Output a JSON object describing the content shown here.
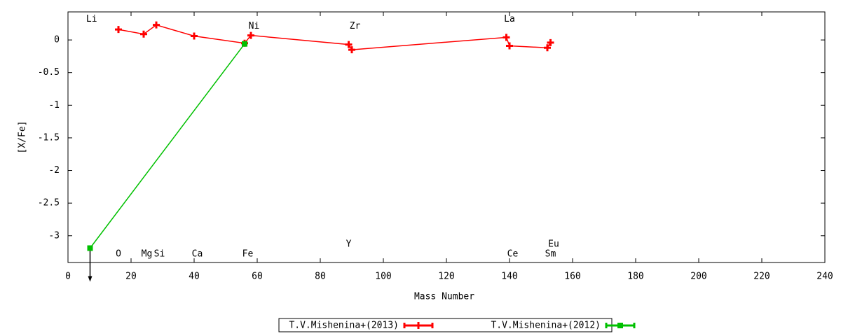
{
  "chart_data": {
    "type": "line",
    "x_label": "Mass Number",
    "y_label": "[X/Fe]",
    "xlim": [
      0,
      240
    ],
    "ylim": [
      -3.41,
      0.43
    ],
    "xticks": [
      0,
      20,
      40,
      60,
      80,
      100,
      120,
      140,
      160,
      180,
      200,
      220,
      240
    ],
    "yticks": [
      0,
      -0.5,
      -1,
      -1.5,
      -2,
      -2.5,
      -3
    ],
    "legend": "bottom",
    "series": [
      {
        "name": "T.V.Mishenina+(2013)",
        "color": "#ff0000",
        "marker": "plus",
        "x": [
          16,
          24,
          28,
          40,
          56,
          58,
          89,
          90,
          139,
          140,
          152,
          153
        ],
        "values": [
          0.16,
          0.09,
          0.23,
          0.06,
          -0.05,
          0.07,
          -0.07,
          -0.15,
          0.04,
          -0.09,
          -0.12,
          -0.04
        ]
      },
      {
        "name": "T.V.Mishenina+(2012)",
        "color": "#00c000",
        "marker": "square",
        "x": [
          7,
          56
        ],
        "values": [
          -3.19,
          -0.06
        ],
        "upper_limit": [
          true,
          false
        ]
      }
    ],
    "annotations": [
      {
        "text": "Li",
        "x": 7.5,
        "y": 0.32
      },
      {
        "text": "Ni",
        "x": 59,
        "y": 0.21
      },
      {
        "text": "Zr",
        "x": 91,
        "y": 0.21
      },
      {
        "text": "La",
        "x": 140,
        "y": 0.32
      },
      {
        "text": "O",
        "x": 16,
        "y": -3.28
      },
      {
        "text": "Mg",
        "x": 25,
        "y": -3.28
      },
      {
        "text": "Si",
        "x": 29,
        "y": -3.28
      },
      {
        "text": "Ca",
        "x": 41,
        "y": -3.28
      },
      {
        "text": "Fe",
        "x": 57,
        "y": -3.28
      },
      {
        "text": "Ce",
        "x": 141,
        "y": -3.28
      },
      {
        "text": "Sm",
        "x": 153,
        "y": -3.28
      },
      {
        "text": "Y",
        "x": 89,
        "y": -3.13
      },
      {
        "text": "Eu",
        "x": 154,
        "y": -3.13
      }
    ]
  }
}
